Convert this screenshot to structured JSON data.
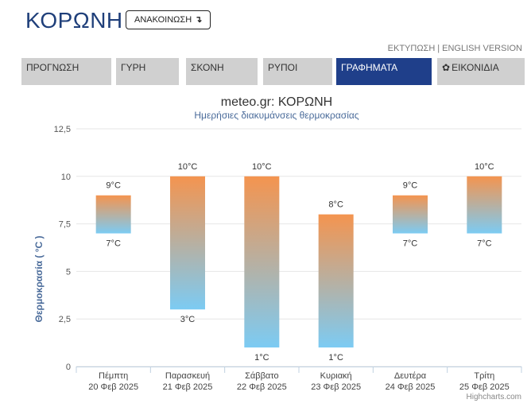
{
  "header": {
    "title": "ΚΟΡΩΝΗ",
    "announce_label": "ΑΝΑΚΟΙΝΩΣΗ",
    "announce_icon": "↴",
    "print_link": "ΕΚΤΥΠΩΣΗ",
    "links_separator": "|",
    "english_link": "ENGLISH VERSION"
  },
  "tabs": [
    {
      "label": "ΠΡΟΓΝΩΣΗ",
      "active": false
    },
    {
      "label": "ΓΥΡΗ",
      "active": false
    },
    {
      "label": "ΣΚΟΝΗ",
      "active": false
    },
    {
      "label": "ΡΥΠΟΙ",
      "active": false
    },
    {
      "label": "ΓΡΑΦΗΜΑΤΑ",
      "active": true
    },
    {
      "label": "ΕΙΚΟΝΙΔΙΑ",
      "active": false,
      "icon": "gear-icon"
    }
  ],
  "colors": {
    "bar_top": "#f4944f",
    "bar_bottom": "#7ccbf3",
    "title": "#333333",
    "subtitle": "#4a6b9a",
    "active_tab": "#1f3f8a",
    "grid": "#e6e6e6"
  },
  "chart_data": {
    "type": "columnrange",
    "title": "meteo.gr: ΚΟΡΩΝΗ",
    "subtitle": "Ημερήσιες διακυμάνσεις θερμοκρασίας",
    "ylabel": "Θερμοκρασία ( °C )",
    "ylim": [
      0,
      12.5
    ],
    "yticks": [
      0,
      2.5,
      5,
      7.5,
      10,
      12.5
    ],
    "ytick_labels": [
      "0",
      "2,5",
      "5",
      "7,5",
      "10",
      "12,5"
    ],
    "grid": true,
    "categories": [
      {
        "day": "Πέμπτη",
        "date": "20 Φεβ 2025"
      },
      {
        "day": "Παρασκευή",
        "date": "21 Φεβ 2025"
      },
      {
        "day": "Σάββατο",
        "date": "22 Φεβ 2025"
      },
      {
        "day": "Κυριακή",
        "date": "23 Φεβ 2025"
      },
      {
        "day": "Δευτέρα",
        "date": "24 Φεβ 2025"
      },
      {
        "day": "Τρίτη",
        "date": "25 Φεβ 2025"
      }
    ],
    "low": [
      7,
      3,
      1,
      1,
      7,
      7
    ],
    "high": [
      9,
      10,
      10,
      8,
      9,
      10
    ],
    "low_labels": [
      "7°C",
      "3°C",
      "1°C",
      "1°C",
      "7°C",
      "7°C"
    ],
    "high_labels": [
      "9°C",
      "10°C",
      "10°C",
      "8°C",
      "9°C",
      "10°C"
    ],
    "credits": "Highcharts.com"
  }
}
